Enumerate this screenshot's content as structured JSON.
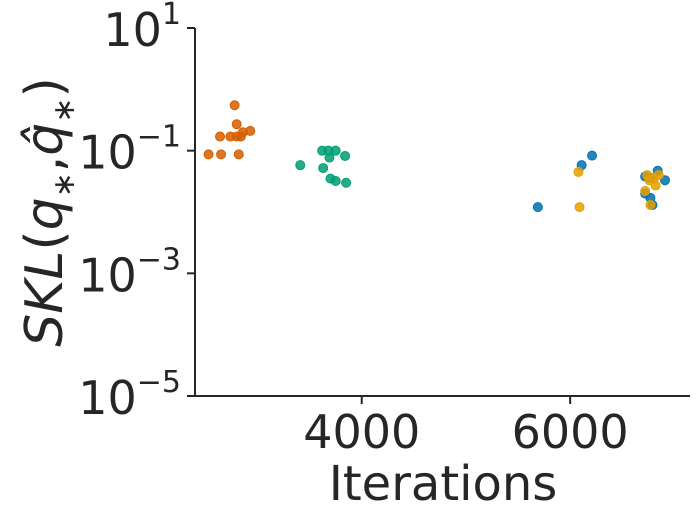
{
  "chart_data": {
    "type": "scatter",
    "title": "",
    "xlabel": "Iterations",
    "ylabel": "SKL(q*, q̂*)",
    "ylabel_parts": {
      "base": "SKL",
      "open": "(",
      "q1": "q",
      "star1": "∗",
      "comma": ",",
      "q2": "q̂",
      "star2": "∗",
      "close": ")"
    },
    "x_scale": "linear",
    "y_scale": "log",
    "xlim": [
      2400,
      7150
    ],
    "ylim": [
      1e-05,
      10
    ],
    "x_ticks": [
      4000,
      6000
    ],
    "x_tick_labels": [
      "4000",
      "6000"
    ],
    "y_ticks": [
      {
        "value": 10,
        "base": "10",
        "exp": "1"
      },
      {
        "value": 0.1,
        "base": "10",
        "exp": "−1"
      },
      {
        "value": 0.001,
        "base": "10",
        "exp": "−3"
      },
      {
        "value": 1e-05,
        "base": "10",
        "exp": "−5"
      }
    ],
    "grid": false,
    "legend": "none",
    "series": [
      {
        "color": "#d55e00",
        "points": [
          {
            "x": 2780,
            "y": 0.55
          },
          {
            "x": 2800,
            "y": 0.27
          },
          {
            "x": 2740,
            "y": 0.17
          },
          {
            "x": 2860,
            "y": 0.2
          },
          {
            "x": 2930,
            "y": 0.21
          },
          {
            "x": 2640,
            "y": 0.17
          },
          {
            "x": 2800,
            "y": 0.17
          },
          {
            "x": 2840,
            "y": 0.17
          },
          {
            "x": 2530,
            "y": 0.087
          },
          {
            "x": 2650,
            "y": 0.087
          },
          {
            "x": 2820,
            "y": 0.087
          }
        ]
      },
      {
        "color": "#009e73",
        "points": [
          {
            "x": 3620,
            "y": 0.1
          },
          {
            "x": 3680,
            "y": 0.1
          },
          {
            "x": 3750,
            "y": 0.1
          },
          {
            "x": 3840,
            "y": 0.082
          },
          {
            "x": 3690,
            "y": 0.077
          },
          {
            "x": 3410,
            "y": 0.058
          },
          {
            "x": 3630,
            "y": 0.052
          },
          {
            "x": 3700,
            "y": 0.035
          },
          {
            "x": 3750,
            "y": 0.032
          },
          {
            "x": 3850,
            "y": 0.03
          }
        ]
      },
      {
        "color": "#0072b2",
        "points": [
          {
            "x": 6210,
            "y": 0.083
          },
          {
            "x": 6110,
            "y": 0.058
          },
          {
            "x": 5690,
            "y": 0.012
          },
          {
            "x": 6840,
            "y": 0.047
          },
          {
            "x": 6720,
            "y": 0.038
          },
          {
            "x": 6770,
            "y": 0.036
          },
          {
            "x": 6910,
            "y": 0.033
          },
          {
            "x": 6720,
            "y": 0.02
          },
          {
            "x": 6770,
            "y": 0.017
          },
          {
            "x": 6790,
            "y": 0.013
          }
        ]
      },
      {
        "color": "#e69f00",
        "points": [
          {
            "x": 6080,
            "y": 0.045
          },
          {
            "x": 6090,
            "y": 0.012
          },
          {
            "x": 6740,
            "y": 0.04
          },
          {
            "x": 6850,
            "y": 0.04
          },
          {
            "x": 6800,
            "y": 0.035
          },
          {
            "x": 6760,
            "y": 0.033
          },
          {
            "x": 6820,
            "y": 0.027
          },
          {
            "x": 6720,
            "y": 0.022
          },
          {
            "x": 6770,
            "y": 0.013
          }
        ]
      }
    ]
  }
}
